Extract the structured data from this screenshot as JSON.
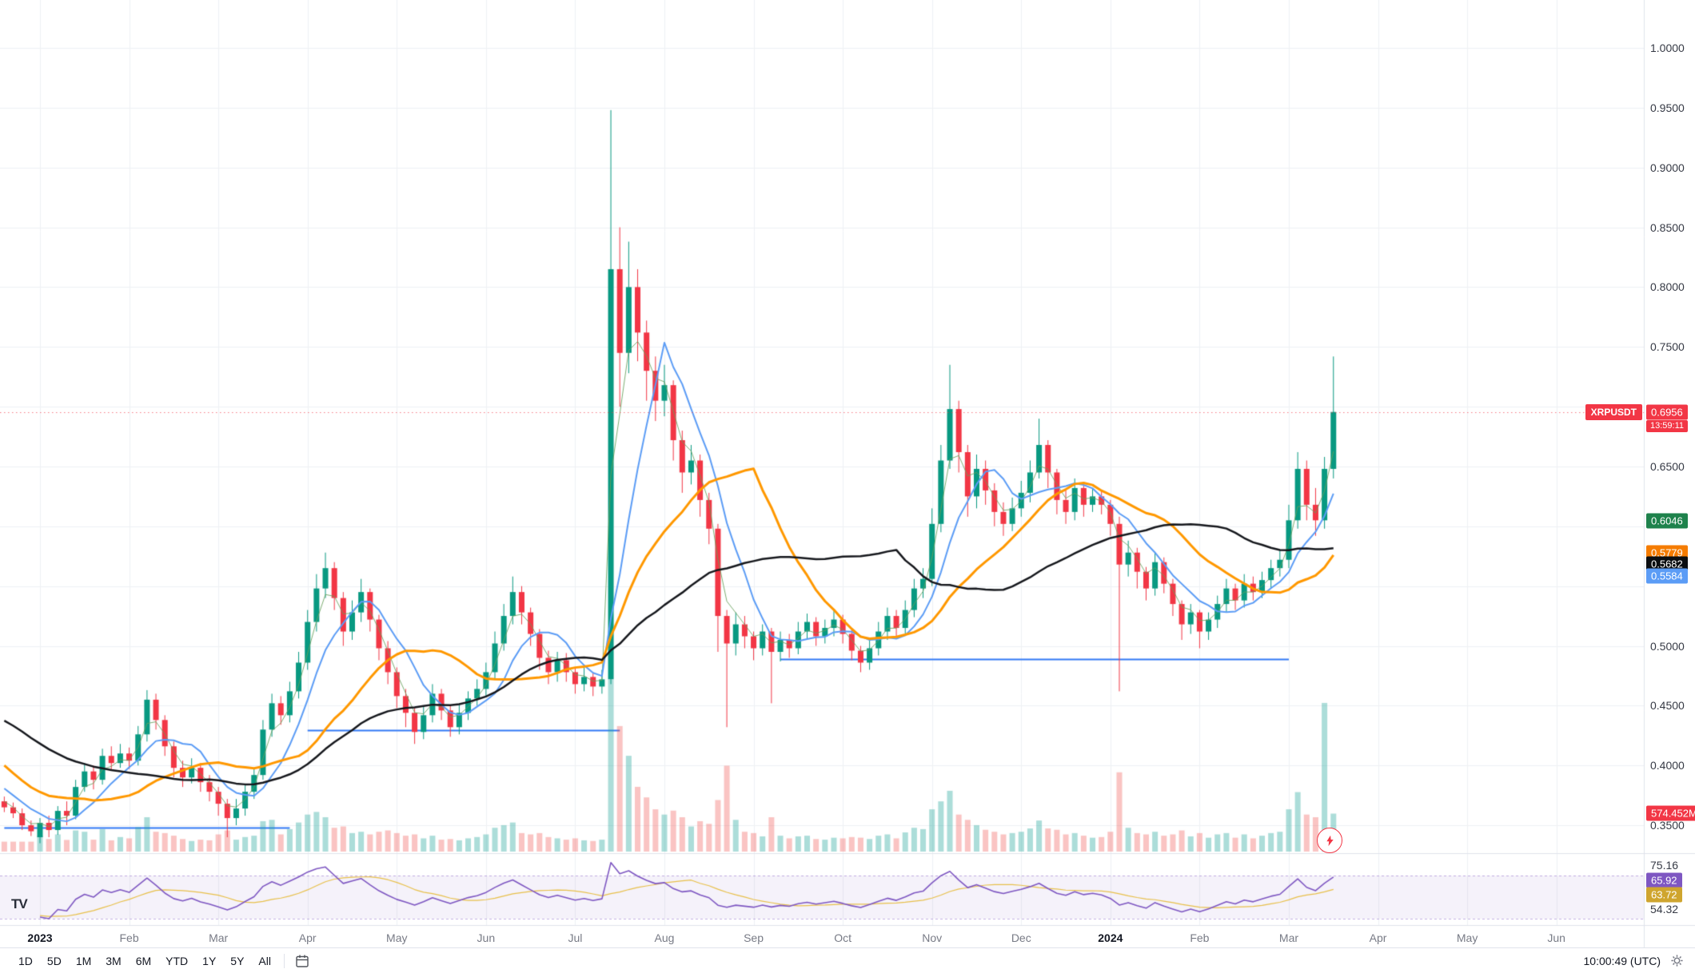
{
  "current": {
    "ticker": "XRPUSDT",
    "price_label": "0.6956",
    "price_value": 0.6956,
    "countdown": "13:59:11"
  },
  "price_axis": {
    "ticks": [
      {
        "label": "1.0000",
        "value": 1.0
      },
      {
        "label": "0.9500",
        "value": 0.95
      },
      {
        "label": "0.9000",
        "value": 0.9
      },
      {
        "label": "0.8500",
        "value": 0.85
      },
      {
        "label": "0.8000",
        "value": 0.8
      },
      {
        "label": "0.7500",
        "value": 0.75
      },
      {
        "label": "0.7000",
        "value": 0.7
      },
      {
        "label": "0.6500",
        "value": 0.65
      },
      {
        "label": "0.6000",
        "value": 0.6
      },
      {
        "label": "0.5500",
        "value": 0.55
      },
      {
        "label": "0.5000",
        "value": 0.5
      },
      {
        "label": "0.4500",
        "value": 0.45
      },
      {
        "label": "0.4000",
        "value": 0.4
      },
      {
        "label": "0.3500",
        "value": 0.35
      }
    ],
    "ma_badges": [
      {
        "label": "0.6046",
        "value": 0.6046,
        "color": "#1e824c"
      },
      {
        "label": "0.5779",
        "value": 0.5779,
        "color": "#f57c00"
      },
      {
        "label": "0.5682",
        "value": 0.5682,
        "color": "#0b0e11"
      },
      {
        "label": "0.5584",
        "value": 0.5584,
        "color": "#5b9cf6"
      }
    ]
  },
  "volume": {
    "current_label": "574.452M",
    "current_value": 574.452,
    "unit": "M"
  },
  "rsi": {
    "scale_high": "75.16",
    "current": "65.92",
    "ma_current": "63.72",
    "scale_low": "54.32",
    "period": 14,
    "band": [
      30,
      70
    ]
  },
  "time_axis": {
    "months": [
      {
        "label": "2023",
        "index": 0,
        "year": true
      },
      {
        "label": "Feb",
        "index": 10
      },
      {
        "label": "Mar",
        "index": 20
      },
      {
        "label": "Apr",
        "index": 30
      },
      {
        "label": "May",
        "index": 40
      },
      {
        "label": "Jun",
        "index": 50
      },
      {
        "label": "Jul",
        "index": 60
      },
      {
        "label": "Aug",
        "index": 70
      },
      {
        "label": "Sep",
        "index": 80
      },
      {
        "label": "Oct",
        "index": 90
      },
      {
        "label": "Nov",
        "index": 100
      },
      {
        "label": "Dec",
        "index": 110
      },
      {
        "label": "2024",
        "index": 120,
        "year": true
      },
      {
        "label": "Feb",
        "index": 130
      },
      {
        "label": "Mar",
        "index": 140
      },
      {
        "label": "Apr",
        "index": 150
      },
      {
        "label": "May",
        "index": 160
      },
      {
        "label": "Jun",
        "index": 170
      }
    ]
  },
  "toolbar": {
    "ranges": [
      "1D",
      "5D",
      "1M",
      "3M",
      "6M",
      "YTD",
      "1Y",
      "5Y",
      "All"
    ],
    "clock": "10:00:49 (UTC)"
  },
  "branding": {
    "logo_text": "TV"
  },
  "colors": {
    "up": "#089981",
    "down": "#f23645",
    "vol_up": "rgba(38,166,154,0.38)",
    "vol_down": "rgba(239,83,80,0.34)",
    "grid": "#eef1f5",
    "separator": "#e0e3eb",
    "price_line": "rgba(242,54,69,0.65)",
    "level_blue": "#3179f5",
    "rsi": "#7e57c2",
    "rsi_ma": "#e8c04a",
    "rsi_band_fill": "rgba(126,87,194,0.08)",
    "rsi_band_line": "rgba(126,87,194,0.45)"
  },
  "chart_data": {
    "type": "candlestick",
    "symbol": "XRPUSDT",
    "price_range_visible": [
      0.35,
      1.0
    ],
    "columns": [
      "open",
      "high",
      "low",
      "close",
      "volume_millions"
    ],
    "candles": [
      [
        0.34,
        0.356,
        0.335,
        0.352,
        240
      ],
      [
        0.352,
        0.358,
        0.34,
        0.346,
        190
      ],
      [
        0.346,
        0.366,
        0.342,
        0.362,
        260
      ],
      [
        0.362,
        0.37,
        0.35,
        0.358,
        176
      ],
      [
        0.358,
        0.388,
        0.355,
        0.382,
        320
      ],
      [
        0.382,
        0.402,
        0.378,
        0.395,
        300
      ],
      [
        0.395,
        0.4,
        0.38,
        0.388,
        180
      ],
      [
        0.388,
        0.414,
        0.384,
        0.408,
        340
      ],
      [
        0.408,
        0.416,
        0.396,
        0.402,
        170
      ],
      [
        0.402,
        0.418,
        0.398,
        0.41,
        220
      ],
      [
        0.41,
        0.415,
        0.397,
        0.404,
        200
      ],
      [
        0.404,
        0.433,
        0.4,
        0.426,
        370
      ],
      [
        0.426,
        0.463,
        0.42,
        0.455,
        520
      ],
      [
        0.455,
        0.46,
        0.43,
        0.438,
        300
      ],
      [
        0.438,
        0.442,
        0.408,
        0.416,
        280
      ],
      [
        0.416,
        0.42,
        0.39,
        0.398,
        240
      ],
      [
        0.398,
        0.404,
        0.382,
        0.39,
        190
      ],
      [
        0.39,
        0.406,
        0.385,
        0.398,
        160
      ],
      [
        0.398,
        0.402,
        0.378,
        0.386,
        180
      ],
      [
        0.386,
        0.392,
        0.37,
        0.378,
        170
      ],
      [
        0.378,
        0.382,
        0.358,
        0.368,
        260
      ],
      [
        0.368,
        0.372,
        0.34,
        0.356,
        320
      ],
      [
        0.356,
        0.372,
        0.35,
        0.364,
        180
      ],
      [
        0.364,
        0.384,
        0.358,
        0.378,
        220
      ],
      [
        0.378,
        0.398,
        0.372,
        0.392,
        240
      ],
      [
        0.392,
        0.438,
        0.388,
        0.43,
        460
      ],
      [
        0.43,
        0.46,
        0.424,
        0.452,
        480
      ],
      [
        0.452,
        0.458,
        0.434,
        0.442,
        260
      ],
      [
        0.442,
        0.47,
        0.436,
        0.462,
        340
      ],
      [
        0.462,
        0.495,
        0.456,
        0.486,
        440
      ],
      [
        0.486,
        0.53,
        0.48,
        0.52,
        560
      ],
      [
        0.52,
        0.56,
        0.512,
        0.548,
        600
      ],
      [
        0.548,
        0.578,
        0.54,
        0.565,
        520
      ],
      [
        0.565,
        0.57,
        0.53,
        0.54,
        360
      ],
      [
        0.54,
        0.545,
        0.5,
        0.512,
        380
      ],
      [
        0.512,
        0.538,
        0.505,
        0.528,
        280
      ],
      [
        0.528,
        0.556,
        0.52,
        0.545,
        300
      ],
      [
        0.545,
        0.548,
        0.512,
        0.522,
        260
      ],
      [
        0.522,
        0.526,
        0.488,
        0.498,
        300
      ],
      [
        0.498,
        0.504,
        0.468,
        0.478,
        320
      ],
      [
        0.478,
        0.482,
        0.448,
        0.458,
        280
      ],
      [
        0.458,
        0.464,
        0.432,
        0.444,
        240
      ],
      [
        0.444,
        0.448,
        0.418,
        0.428,
        260
      ],
      [
        0.428,
        0.45,
        0.422,
        0.442,
        200
      ],
      [
        0.442,
        0.468,
        0.436,
        0.46,
        240
      ],
      [
        0.46,
        0.464,
        0.438,
        0.446,
        180
      ],
      [
        0.446,
        0.45,
        0.424,
        0.432,
        190
      ],
      [
        0.432,
        0.452,
        0.426,
        0.444,
        170
      ],
      [
        0.444,
        0.462,
        0.438,
        0.456,
        200
      ],
      [
        0.456,
        0.472,
        0.45,
        0.464,
        220
      ],
      [
        0.464,
        0.486,
        0.458,
        0.478,
        260
      ],
      [
        0.478,
        0.512,
        0.472,
        0.502,
        360
      ],
      [
        0.502,
        0.535,
        0.496,
        0.525,
        400
      ],
      [
        0.525,
        0.558,
        0.518,
        0.545,
        440
      ],
      [
        0.545,
        0.55,
        0.518,
        0.528,
        280
      ],
      [
        0.528,
        0.532,
        0.5,
        0.51,
        260
      ],
      [
        0.51,
        0.514,
        0.48,
        0.49,
        280
      ],
      [
        0.49,
        0.496,
        0.468,
        0.478,
        220
      ],
      [
        0.478,
        0.495,
        0.47,
        0.488,
        200
      ],
      [
        0.488,
        0.494,
        0.47,
        0.478,
        180
      ],
      [
        0.478,
        0.482,
        0.46,
        0.468,
        200
      ],
      [
        0.468,
        0.482,
        0.462,
        0.474,
        170
      ],
      [
        0.474,
        0.478,
        0.458,
        0.466,
        160
      ],
      [
        0.466,
        0.48,
        0.46,
        0.472,
        180
      ],
      [
        0.472,
        0.948,
        0.468,
        0.815,
        2600
      ],
      [
        0.815,
        0.85,
        0.7,
        0.745,
        1900
      ],
      [
        0.745,
        0.838,
        0.728,
        0.8,
        1450
      ],
      [
        0.8,
        0.815,
        0.738,
        0.762,
        980
      ],
      [
        0.762,
        0.772,
        0.705,
        0.73,
        820
      ],
      [
        0.73,
        0.742,
        0.688,
        0.705,
        640
      ],
      [
        0.705,
        0.735,
        0.692,
        0.718,
        560
      ],
      [
        0.718,
        0.722,
        0.655,
        0.672,
        620
      ],
      [
        0.672,
        0.68,
        0.628,
        0.645,
        520
      ],
      [
        0.645,
        0.668,
        0.635,
        0.655,
        380
      ],
      [
        0.655,
        0.66,
        0.608,
        0.622,
        460
      ],
      [
        0.622,
        0.628,
        0.585,
        0.598,
        420
      ],
      [
        0.598,
        0.602,
        0.495,
        0.525,
        780
      ],
      [
        0.525,
        0.53,
        0.432,
        0.502,
        1300
      ],
      [
        0.502,
        0.528,
        0.492,
        0.518,
        480
      ],
      [
        0.518,
        0.525,
        0.498,
        0.508,
        300
      ],
      [
        0.508,
        0.512,
        0.488,
        0.498,
        280
      ],
      [
        0.498,
        0.518,
        0.492,
        0.512,
        230
      ],
      [
        0.512,
        0.515,
        0.452,
        0.495,
        520
      ],
      [
        0.495,
        0.512,
        0.487,
        0.505,
        240
      ],
      [
        0.505,
        0.51,
        0.49,
        0.498,
        200
      ],
      [
        0.498,
        0.52,
        0.493,
        0.512,
        230
      ],
      [
        0.512,
        0.527,
        0.505,
        0.52,
        240
      ],
      [
        0.52,
        0.524,
        0.5,
        0.508,
        190
      ],
      [
        0.508,
        0.522,
        0.502,
        0.515,
        180
      ],
      [
        0.515,
        0.53,
        0.508,
        0.522,
        210
      ],
      [
        0.522,
        0.526,
        0.502,
        0.51,
        200
      ],
      [
        0.51,
        0.514,
        0.488,
        0.496,
        220
      ],
      [
        0.496,
        0.5,
        0.478,
        0.486,
        210
      ],
      [
        0.486,
        0.505,
        0.48,
        0.498,
        190
      ],
      [
        0.498,
        0.52,
        0.492,
        0.512,
        240
      ],
      [
        0.512,
        0.532,
        0.505,
        0.525,
        260
      ],
      [
        0.525,
        0.53,
        0.508,
        0.515,
        200
      ],
      [
        0.515,
        0.538,
        0.51,
        0.53,
        290
      ],
      [
        0.53,
        0.556,
        0.524,
        0.548,
        360
      ],
      [
        0.548,
        0.565,
        0.54,
        0.556,
        340
      ],
      [
        0.556,
        0.615,
        0.55,
        0.602,
        640
      ],
      [
        0.602,
        0.668,
        0.595,
        0.655,
        760
      ],
      [
        0.655,
        0.735,
        0.648,
        0.698,
        920
      ],
      [
        0.698,
        0.705,
        0.645,
        0.662,
        560
      ],
      [
        0.662,
        0.668,
        0.608,
        0.625,
        480
      ],
      [
        0.625,
        0.66,
        0.615,
        0.648,
        400
      ],
      [
        0.648,
        0.655,
        0.618,
        0.63,
        330
      ],
      [
        0.63,
        0.636,
        0.6,
        0.612,
        300
      ],
      [
        0.612,
        0.62,
        0.592,
        0.602,
        260
      ],
      [
        0.602,
        0.624,
        0.596,
        0.615,
        280
      ],
      [
        0.615,
        0.638,
        0.608,
        0.628,
        300
      ],
      [
        0.628,
        0.655,
        0.62,
        0.645,
        350
      ],
      [
        0.645,
        0.69,
        0.64,
        0.668,
        470
      ],
      [
        0.668,
        0.672,
        0.632,
        0.645,
        350
      ],
      [
        0.645,
        0.648,
        0.61,
        0.622,
        330
      ],
      [
        0.622,
        0.63,
        0.602,
        0.612,
        260
      ],
      [
        0.612,
        0.64,
        0.605,
        0.632,
        280
      ],
      [
        0.632,
        0.636,
        0.608,
        0.618,
        240
      ],
      [
        0.618,
        0.632,
        0.612,
        0.625,
        210
      ],
      [
        0.625,
        0.63,
        0.61,
        0.618,
        220
      ],
      [
        0.618,
        0.622,
        0.592,
        0.602,
        300
      ],
      [
        0.602,
        0.608,
        0.462,
        0.568,
        1200
      ],
      [
        0.568,
        0.588,
        0.558,
        0.578,
        360
      ],
      [
        0.578,
        0.582,
        0.548,
        0.562,
        280
      ],
      [
        0.562,
        0.566,
        0.538,
        0.548,
        260
      ],
      [
        0.548,
        0.578,
        0.542,
        0.57,
        300
      ],
      [
        0.57,
        0.574,
        0.544,
        0.552,
        240
      ],
      [
        0.552,
        0.556,
        0.525,
        0.535,
        260
      ],
      [
        0.535,
        0.538,
        0.505,
        0.518,
        320
      ],
      [
        0.518,
        0.535,
        0.51,
        0.528,
        230
      ],
      [
        0.528,
        0.53,
        0.498,
        0.512,
        280
      ],
      [
        0.512,
        0.528,
        0.505,
        0.522,
        210
      ],
      [
        0.522,
        0.542,
        0.515,
        0.535,
        260
      ],
      [
        0.535,
        0.556,
        0.528,
        0.548,
        280
      ],
      [
        0.548,
        0.552,
        0.53,
        0.538,
        210
      ],
      [
        0.538,
        0.56,
        0.532,
        0.552,
        260
      ],
      [
        0.552,
        0.558,
        0.538,
        0.545,
        200
      ],
      [
        0.545,
        0.562,
        0.54,
        0.555,
        240
      ],
      [
        0.555,
        0.572,
        0.548,
        0.565,
        280
      ],
      [
        0.565,
        0.58,
        0.558,
        0.572,
        300
      ],
      [
        0.572,
        0.618,
        0.565,
        0.605,
        640
      ],
      [
        0.605,
        0.662,
        0.598,
        0.648,
        900
      ],
      [
        0.648,
        0.655,
        0.605,
        0.618,
        560
      ],
      [
        0.618,
        0.632,
        0.592,
        0.605,
        520
      ],
      [
        0.605,
        0.658,
        0.598,
        0.648,
        2250
      ],
      [
        0.648,
        0.742,
        0.64,
        0.6956,
        574.452
      ]
    ],
    "prehistory_closes": [
      0.46,
      0.47,
      0.48,
      0.49,
      0.5,
      0.51,
      0.52,
      0.51,
      0.5,
      0.49,
      0.48,
      0.47,
      0.465,
      0.46,
      0.455,
      0.45,
      0.445,
      0.44,
      0.46,
      0.48,
      0.47,
      0.455,
      0.44,
      0.42,
      0.4,
      0.38,
      0.37,
      0.39,
      0.4,
      0.41,
      0.4,
      0.39,
      0.385,
      0.38,
      0.375,
      0.37,
      0.365,
      0.36,
      0.35,
      0.345
    ],
    "overlays": [
      {
        "name": "ma-fast",
        "type": "ema",
        "period": 3,
        "color": "rgba(103,160,92,0.85)",
        "width": 1
      },
      {
        "name": "ma-mid",
        "type": "sma",
        "period": 7,
        "color": "#5b9cf6",
        "width": 2
      },
      {
        "name": "ma-slow",
        "type": "sma",
        "period": 17,
        "color": "#ff9800",
        "width": 3
      },
      {
        "name": "ma-long",
        "type": "sma",
        "period": 33,
        "color": "#16181d",
        "width": 2.5
      }
    ],
    "levels": [
      {
        "price": 0.348,
        "from_index": -4,
        "to_index": 28
      },
      {
        "price": 0.4295,
        "from_index": 30,
        "to_index": 65
      },
      {
        "price": 0.489,
        "from_index": 83,
        "to_index": 140
      }
    ]
  }
}
